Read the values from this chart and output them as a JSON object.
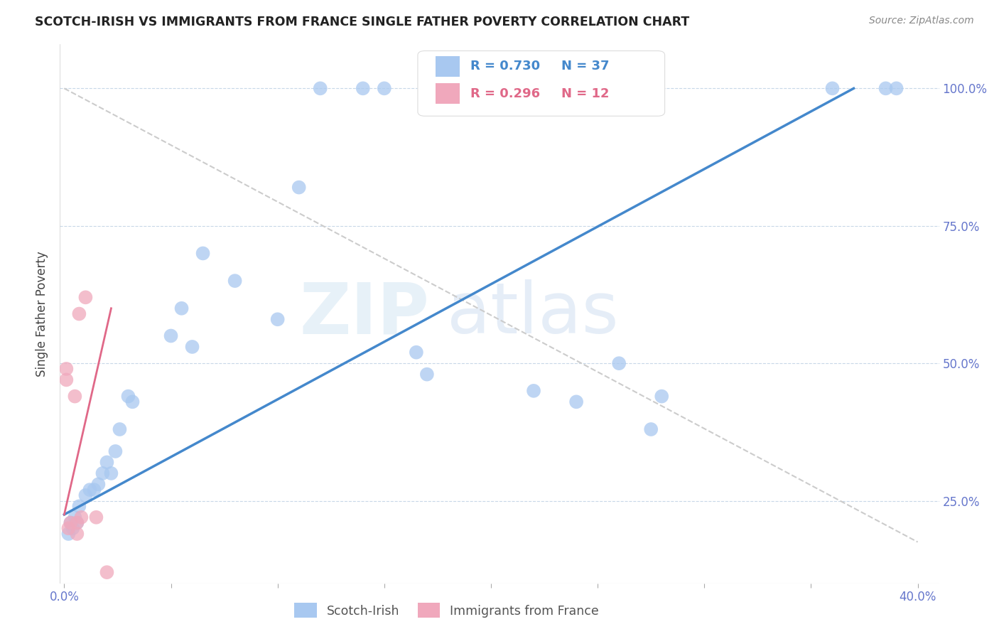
{
  "title": "SCOTCH-IRISH VS IMMIGRANTS FROM FRANCE SINGLE FATHER POVERTY CORRELATION CHART",
  "source": "Source: ZipAtlas.com",
  "ylabel": "Single Father Poverty",
  "ytick_labels": [
    "25.0%",
    "50.0%",
    "75.0%",
    "100.0%"
  ],
  "ytick_values": [
    0.25,
    0.5,
    0.75,
    1.0
  ],
  "xlim": [
    -0.002,
    0.41
  ],
  "ylim": [
    0.1,
    1.08
  ],
  "watermark_zip": "ZIP",
  "watermark_atlas": "atlas",
  "blue_R": 0.73,
  "blue_N": 37,
  "pink_R": 0.296,
  "pink_N": 12,
  "blue_color": "#A8C8F0",
  "pink_color": "#F0A8BC",
  "blue_line_color": "#4488CC",
  "pink_line_color": "#E06888",
  "dashed_line_color": "#CCCCCC",
  "blue_scatter_x": [
    0.002,
    0.003,
    0.004,
    0.005,
    0.006,
    0.007,
    0.01,
    0.012,
    0.014,
    0.016,
    0.018,
    0.02,
    0.022,
    0.024,
    0.026,
    0.03,
    0.032,
    0.05,
    0.055,
    0.06,
    0.065,
    0.08,
    0.1,
    0.11,
    0.12,
    0.14,
    0.15,
    0.165,
    0.17,
    0.22,
    0.24,
    0.26,
    0.275,
    0.28,
    0.36,
    0.385,
    0.39
  ],
  "blue_scatter_y": [
    0.19,
    0.21,
    0.2,
    0.22,
    0.21,
    0.24,
    0.26,
    0.27,
    0.27,
    0.28,
    0.3,
    0.32,
    0.3,
    0.34,
    0.38,
    0.44,
    0.43,
    0.55,
    0.6,
    0.53,
    0.7,
    0.65,
    0.58,
    0.82,
    1.0,
    1.0,
    1.0,
    0.52,
    0.48,
    0.45,
    0.43,
    0.5,
    0.38,
    0.44,
    1.0,
    1.0,
    1.0
  ],
  "pink_scatter_x": [
    0.001,
    0.001,
    0.002,
    0.003,
    0.005,
    0.006,
    0.006,
    0.007,
    0.008,
    0.01,
    0.015,
    0.02
  ],
  "pink_scatter_y": [
    0.47,
    0.49,
    0.2,
    0.21,
    0.44,
    0.19,
    0.21,
    0.59,
    0.22,
    0.62,
    0.22,
    0.12
  ],
  "blue_line_x": [
    0.0,
    0.37
  ],
  "blue_line_y": [
    0.225,
    1.0
  ],
  "pink_line_x": [
    0.0,
    0.022
  ],
  "pink_line_y": [
    0.225,
    0.6
  ],
  "dashed_line_x": [
    0.0,
    0.4
  ],
  "dashed_line_y": [
    1.0,
    0.175
  ],
  "legend_blue_label": "Scotch-Irish",
  "legend_pink_label": "Immigrants from France"
}
